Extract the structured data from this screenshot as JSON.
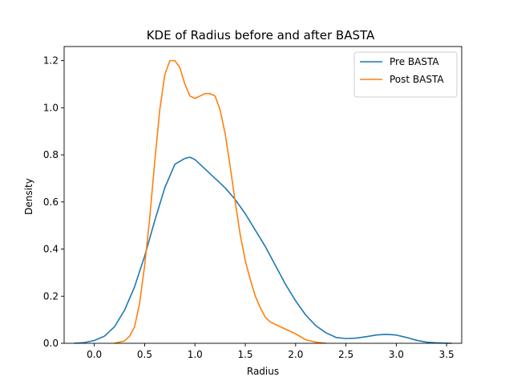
{
  "chart_data": {
    "type": "line",
    "title": "KDE of Radius before and after BASTA",
    "xlabel": "Radius",
    "ylabel": "Density",
    "xlim": [
      -0.3,
      3.65
    ],
    "ylim": [
      0,
      1.26
    ],
    "xticks": [
      0.0,
      0.5,
      1.0,
      1.5,
      2.0,
      2.5,
      3.0,
      3.5
    ],
    "xtick_labels": [
      "0.0",
      "0.5",
      "1.0",
      "1.5",
      "2.0",
      "2.5",
      "3.0",
      "3.5"
    ],
    "yticks": [
      0.0,
      0.2,
      0.4,
      0.6,
      0.8,
      1.0,
      1.2
    ],
    "ytick_labels": [
      "0.0",
      "0.2",
      "0.4",
      "0.6",
      "0.8",
      "1.0",
      "1.2"
    ],
    "grid": false,
    "legend_position": "top-right",
    "series": [
      {
        "name": "Pre BASTA",
        "color": "#1f77b4",
        "x": [
          -0.2,
          -0.1,
          0.0,
          0.1,
          0.2,
          0.3,
          0.4,
          0.5,
          0.6,
          0.7,
          0.8,
          0.9,
          0.95,
          1.0,
          1.1,
          1.2,
          1.3,
          1.4,
          1.5,
          1.6,
          1.7,
          1.8,
          1.9,
          2.0,
          2.1,
          2.2,
          2.3,
          2.4,
          2.5,
          2.6,
          2.7,
          2.8,
          2.9,
          3.0,
          3.1,
          3.2,
          3.3,
          3.4,
          3.55
        ],
        "y": [
          0.0,
          0.003,
          0.012,
          0.03,
          0.07,
          0.14,
          0.24,
          0.37,
          0.52,
          0.66,
          0.76,
          0.785,
          0.79,
          0.78,
          0.74,
          0.7,
          0.66,
          0.61,
          0.55,
          0.48,
          0.41,
          0.33,
          0.25,
          0.18,
          0.12,
          0.075,
          0.045,
          0.025,
          0.02,
          0.022,
          0.028,
          0.035,
          0.038,
          0.035,
          0.025,
          0.013,
          0.005,
          0.002,
          0.0
        ]
      },
      {
        "name": "Post BASTA",
        "color": "#ff7f0e",
        "x": [
          0.2,
          0.3,
          0.35,
          0.4,
          0.45,
          0.5,
          0.55,
          0.6,
          0.65,
          0.7,
          0.75,
          0.8,
          0.85,
          0.9,
          0.95,
          1.0,
          1.05,
          1.1,
          1.15,
          1.2,
          1.25,
          1.3,
          1.35,
          1.4,
          1.45,
          1.5,
          1.55,
          1.6,
          1.65,
          1.7,
          1.75,
          1.8,
          1.9,
          2.0,
          2.1,
          2.2,
          2.3
        ],
        "y": [
          0.0,
          0.01,
          0.03,
          0.07,
          0.17,
          0.33,
          0.53,
          0.77,
          0.99,
          1.14,
          1.2,
          1.2,
          1.17,
          1.1,
          1.05,
          1.04,
          1.05,
          1.06,
          1.06,
          1.05,
          0.99,
          0.89,
          0.75,
          0.6,
          0.46,
          0.35,
          0.27,
          0.2,
          0.15,
          0.11,
          0.09,
          0.08,
          0.06,
          0.04,
          0.015,
          0.005,
          0.0
        ]
      }
    ]
  }
}
